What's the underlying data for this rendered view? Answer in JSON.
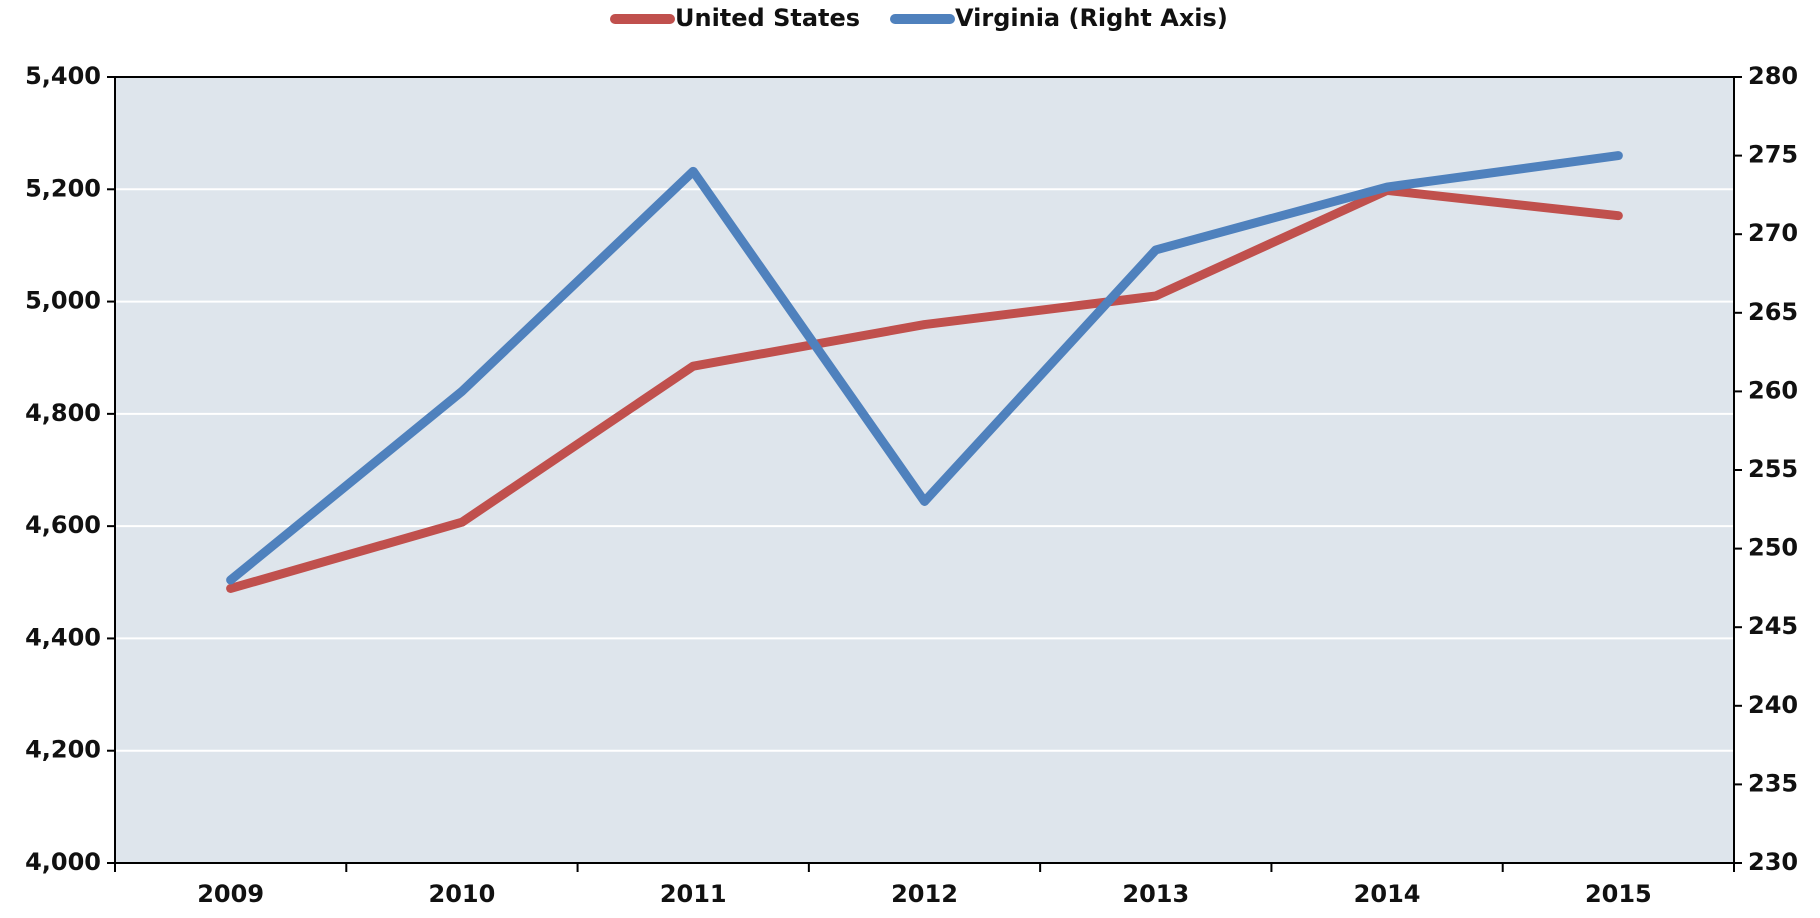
{
  "chart_data": {
    "type": "line",
    "categories": [
      "2009",
      "2010",
      "2011",
      "2012",
      "2013",
      "2014",
      "2015"
    ],
    "series": [
      {
        "name": "United States",
        "color": "#c0504d",
        "values": [
          4489,
          4607,
          4885,
          4959,
          5010,
          5198,
          5153
        ]
      },
      {
        "name": "Virginia (Right Axis)",
        "color": "#4f81bd",
        "axis": "y2",
        "values": [
          248,
          260,
          274,
          253,
          269,
          273,
          275
        ]
      }
    ],
    "ylim": [
      4000,
      5400
    ],
    "yticks": [
      {
        "value": 4000,
        "label": "4,000"
      },
      {
        "value": 4200,
        "label": "4,200"
      },
      {
        "value": 4400,
        "label": "4,400"
      },
      {
        "value": 4600,
        "label": "4,600"
      },
      {
        "value": 4800,
        "label": "4,800"
      },
      {
        "value": 5000,
        "label": "5,000"
      },
      {
        "value": 5200,
        "label": "5,200"
      },
      {
        "value": 5400,
        "label": "5,400"
      }
    ],
    "y2lim": [
      230,
      280
    ],
    "y2ticks": [
      230,
      235,
      240,
      245,
      250,
      255,
      260,
      265,
      270,
      275,
      280
    ],
    "grid": true,
    "legend": "top"
  }
}
